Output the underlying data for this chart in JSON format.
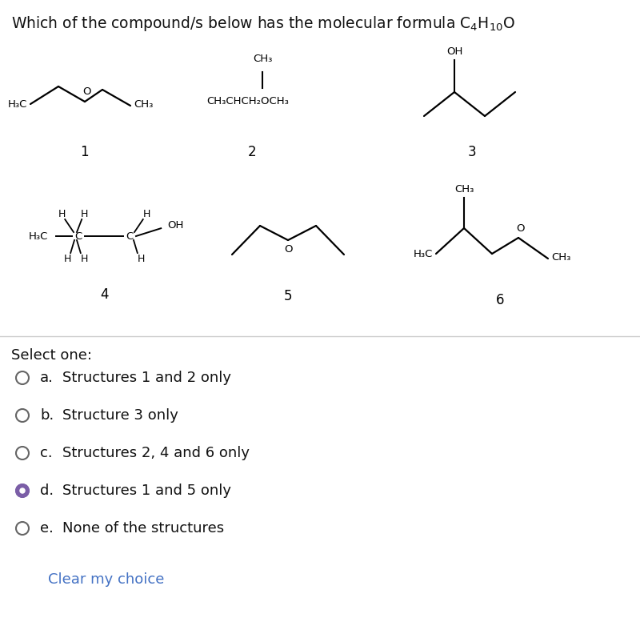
{
  "background_color": "#ffffff",
  "text_color": "#000000",
  "title": "Which of the compound/s below has the molecular formula C$_4$H$_{10}$O",
  "options": [
    {
      "letter": "a.",
      "text": "Structures 1 and 2 only",
      "selected": false
    },
    {
      "letter": "b.",
      "text": "Structure 3 only",
      "selected": false
    },
    {
      "letter": "c.",
      "text": "Structures 2, 4 and 6 only",
      "selected": false
    },
    {
      "letter": "d.",
      "text": "Structures 1 and 5 only",
      "selected": true
    },
    {
      "letter": "e.",
      "text": "None of the structures",
      "selected": false
    }
  ],
  "clear_text": "Clear my choice",
  "clear_color": "#4472c4",
  "selected_fill": "#7b5ea7",
  "unselected_edge": "#666666",
  "select_one_text": "Select one:"
}
